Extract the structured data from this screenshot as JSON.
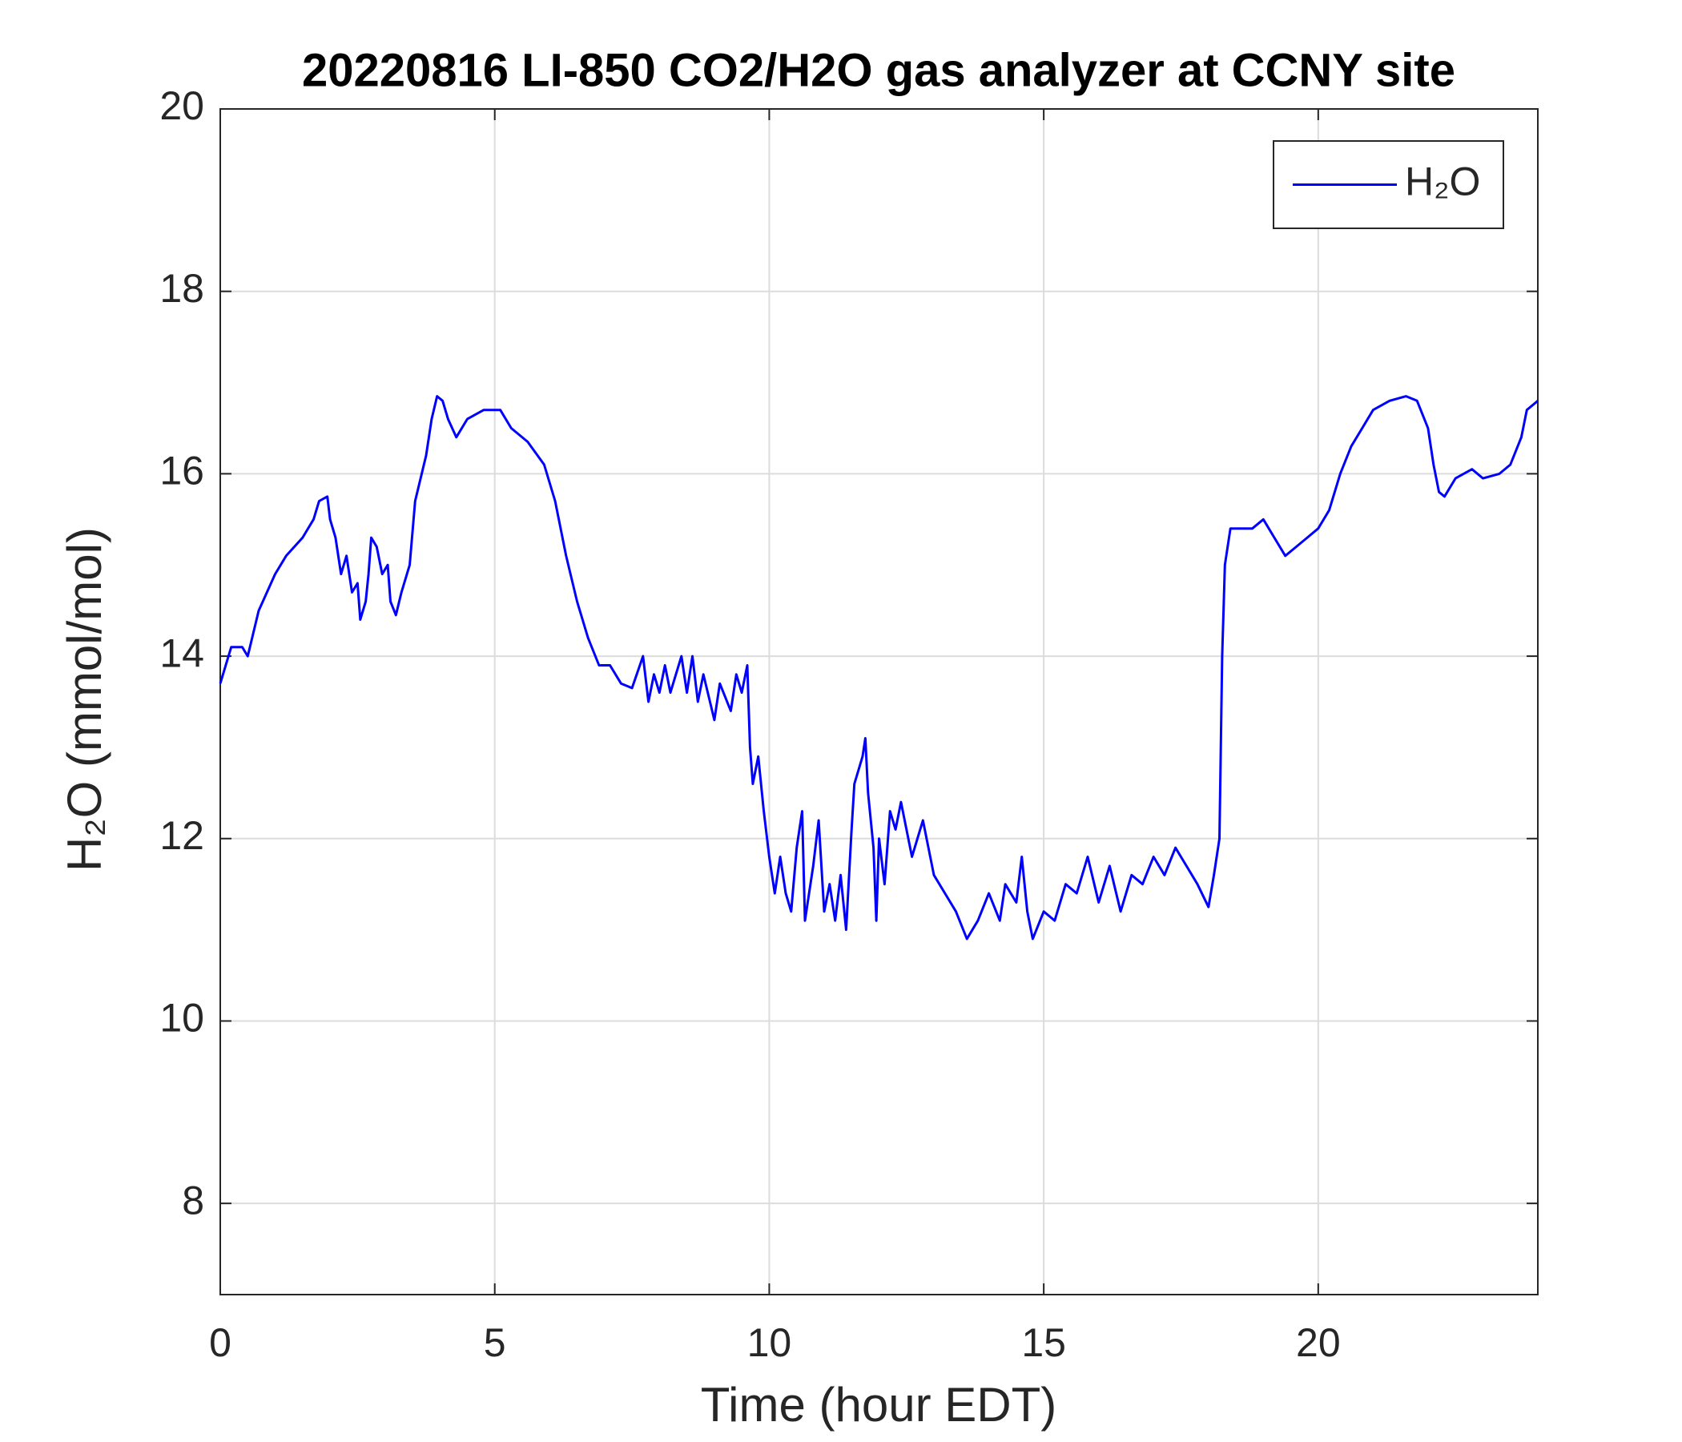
{
  "chart_data": {
    "type": "line",
    "title": "20220816 LI-850 CO2/H2O gas analyzer at CCNY site",
    "x_label": "Time (hour EDT)",
    "y_label": "H₂O (mmol/mol)",
    "xlim": [
      0,
      24
    ],
    "xticks": [
      0,
      5,
      10,
      15,
      20
    ],
    "ylim": [
      7,
      20
    ],
    "yticks": [
      8,
      10,
      12,
      14,
      16,
      18,
      20
    ],
    "grid": true,
    "legend": "upper right",
    "x": [
      0,
      0.2,
      0.4,
      0.5,
      0.7,
      1.0,
      1.2,
      1.5,
      1.7,
      1.8,
      1.95,
      2.0,
      2.1,
      2.2,
      2.3,
      2.4,
      2.5,
      2.55,
      2.65,
      2.7,
      2.75,
      2.85,
      2.95,
      3.05,
      3.1,
      3.2,
      3.3,
      3.45,
      3.55,
      3.75,
      3.85,
      3.95,
      4.05,
      4.15,
      4.3,
      4.5,
      4.8,
      5.1,
      5.3,
      5.6,
      5.9,
      6.1,
      6.3,
      6.5,
      6.7,
      6.9,
      7.1,
      7.3,
      7.5,
      7.7,
      7.8,
      7.9,
      8.0,
      8.1,
      8.2,
      8.4,
      8.5,
      8.6,
      8.7,
      8.8,
      9.0,
      9.1,
      9.3,
      9.4,
      9.5,
      9.6,
      9.65,
      9.7,
      9.8,
      9.9,
      10.0,
      10.1,
      10.2,
      10.3,
      10.4,
      10.5,
      10.6,
      10.65,
      10.8,
      10.9,
      11.0,
      11.1,
      11.2,
      11.3,
      11.4,
      11.5,
      11.55,
      11.7,
      11.75,
      11.8,
      11.9,
      11.95,
      12.0,
      12.1,
      12.2,
      12.3,
      12.4,
      12.6,
      12.8,
      13.0,
      13.2,
      13.4,
      13.6,
      13.8,
      14.0,
      14.2,
      14.3,
      14.5,
      14.6,
      14.7,
      14.8,
      15.0,
      15.2,
      15.4,
      15.6,
      15.8,
      16.0,
      16.2,
      16.4,
      16.6,
      16.8,
      17.0,
      17.2,
      17.4,
      17.6,
      17.8,
      18.0,
      18.1,
      18.2,
      18.25,
      18.3,
      18.4,
      18.6,
      18.8,
      19.0,
      19.2,
      19.4,
      19.6,
      19.8,
      20.0,
      20.2,
      20.4,
      20.6,
      20.8,
      21.0,
      21.3,
      21.6,
      21.8,
      22.0,
      22.1,
      22.2,
      22.3,
      22.5,
      22.8,
      23.0,
      23.3,
      23.5,
      23.7,
      23.8,
      24.0
    ],
    "series": [
      {
        "name": "H₂O",
        "color": "#0000ff",
        "values": [
          13.7,
          14.1,
          14.1,
          14.0,
          14.5,
          14.9,
          15.1,
          15.3,
          15.5,
          15.7,
          15.75,
          15.5,
          15.3,
          14.9,
          15.1,
          14.7,
          14.8,
          14.4,
          14.6,
          14.9,
          15.3,
          15.2,
          14.9,
          15.0,
          14.6,
          14.45,
          14.7,
          15.0,
          15.7,
          16.2,
          16.6,
          16.85,
          16.8,
          16.6,
          16.4,
          16.6,
          16.7,
          16.7,
          16.5,
          16.35,
          16.1,
          15.7,
          15.1,
          14.6,
          14.2,
          13.9,
          13.9,
          13.7,
          13.65,
          14.0,
          13.5,
          13.8,
          13.6,
          13.9,
          13.6,
          14.0,
          13.6,
          14.0,
          13.5,
          13.8,
          13.3,
          13.7,
          13.4,
          13.8,
          13.6,
          13.9,
          13.0,
          12.6,
          12.9,
          12.3,
          11.8,
          11.4,
          11.8,
          11.4,
          11.2,
          11.9,
          12.3,
          11.1,
          11.7,
          12.2,
          11.2,
          11.5,
          11.1,
          11.6,
          11.0,
          12.1,
          12.6,
          12.9,
          13.1,
          12.5,
          11.9,
          11.1,
          12.0,
          11.5,
          12.3,
          12.1,
          12.4,
          11.8,
          12.2,
          11.6,
          11.4,
          11.2,
          10.9,
          11.1,
          11.4,
          11.1,
          11.5,
          11.3,
          11.8,
          11.2,
          10.9,
          11.2,
          11.1,
          11.5,
          11.4,
          11.8,
          11.3,
          11.7,
          11.2,
          11.6,
          11.5,
          11.8,
          11.6,
          11.9,
          11.7,
          11.5,
          11.25,
          11.6,
          12.0,
          14.0,
          15.0,
          15.4,
          15.4,
          15.4,
          15.5,
          15.3,
          15.1,
          15.2,
          15.3,
          15.4,
          15.6,
          16.0,
          16.3,
          16.5,
          16.7,
          16.8,
          16.85,
          16.8,
          16.5,
          16.1,
          15.8,
          15.75,
          15.95,
          16.05,
          15.95,
          16.0,
          16.1,
          16.4,
          16.7,
          16.8
        ]
      }
    ]
  }
}
